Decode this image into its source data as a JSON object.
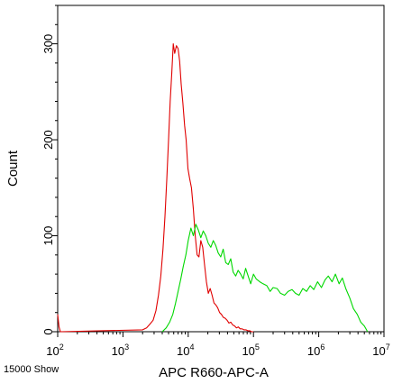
{
  "chart_data": {
    "type": "line",
    "title": "",
    "xlabel": "APC R660-APC-A",
    "ylabel": "Count",
    "x_scale": "log",
    "xlim": [
      100,
      10000000
    ],
    "ylim": [
      0,
      340
    ],
    "grid": false,
    "legend": "none",
    "footer_text": "15000 Show",
    "x_ticks": [
      {
        "base": "10",
        "exp": "2"
      },
      {
        "base": "10",
        "exp": "3"
      },
      {
        "base": "10",
        "exp": "4"
      },
      {
        "base": "10",
        "exp": "5"
      },
      {
        "base": "10",
        "exp": "6"
      },
      {
        "base": "10",
        "exp": "7"
      }
    ],
    "x_tick_values": [
      100,
      1000,
      10000,
      100000,
      1000000,
      10000000
    ],
    "y_ticks": [
      "0",
      "100",
      "200",
      "300"
    ],
    "y_tick_values": [
      0,
      100,
      200,
      300
    ],
    "series": [
      {
        "color": "#e00000",
        "x": [
          100,
          105,
          110,
          2000,
          2300,
          2600,
          2900,
          3200,
          3500,
          3800,
          4100,
          4400,
          4700,
          5000,
          5300,
          5600,
          5900,
          6200,
          6600,
          7000,
          7400,
          7800,
          8300,
          8800,
          9300,
          9900,
          10500,
          11200,
          12000,
          12800,
          13700,
          14600,
          15600,
          16700,
          17800,
          19000,
          20300,
          21700,
          23200,
          24800,
          26500,
          28300,
          30200,
          32300,
          34500,
          36900,
          39400,
          42100,
          45000,
          48100,
          51400,
          54900,
          58700,
          62700,
          67000,
          71600,
          76500,
          81800,
          87400,
          93400,
          100000
        ],
        "y": [
          18,
          5,
          0,
          2,
          4,
          8,
          12,
          22,
          38,
          58,
          86,
          120,
          160,
          200,
          240,
          270,
          300,
          290,
          298,
          295,
          282,
          258,
          238,
          215,
          200,
          170,
          160,
          150,
          128,
          100,
          80,
          78,
          95,
          88,
          70,
          52,
          40,
          45,
          38,
          30,
          28,
          25,
          20,
          18,
          15,
          14,
          12,
          9,
          10,
          7,
          6,
          4,
          5,
          3,
          3,
          2,
          2,
          1,
          1,
          0,
          0
        ]
      },
      {
        "color": "#00d800",
        "x": [
          4000,
          4600,
          5200,
          5800,
          6400,
          7000,
          7700,
          8400,
          9200,
          10000,
          11000,
          12000,
          13100,
          14300,
          15600,
          17000,
          18600,
          20300,
          22200,
          24200,
          26400,
          28800,
          31500,
          34400,
          37500,
          41000,
          44800,
          48900,
          53400,
          58300,
          63700,
          69500,
          75900,
          82900,
          90500,
          100000,
          110000,
          125000,
          140000,
          160000,
          180000,
          200000,
          230000,
          260000,
          300000,
          340000,
          390000,
          440000,
          500000,
          570000,
          650000,
          740000,
          840000,
          960000,
          1100000,
          1250000,
          1400000,
          1600000,
          1800000,
          2050000,
          2300000,
          2600000,
          3000000,
          3400000,
          3900000,
          4400000,
          5000000,
          5600000
        ],
        "y": [
          0,
          4,
          10,
          18,
          30,
          42,
          55,
          68,
          80,
          95,
          108,
          100,
          112,
          106,
          98,
          105,
          100,
          92,
          88,
          95,
          90,
          82,
          78,
          86,
          72,
          70,
          76,
          62,
          58,
          64,
          60,
          55,
          66,
          58,
          50,
          60,
          55,
          52,
          50,
          48,
          42,
          46,
          45,
          40,
          38,
          42,
          44,
          40,
          38,
          45,
          42,
          48,
          44,
          52,
          46,
          54,
          58,
          52,
          60,
          50,
          56,
          45,
          35,
          24,
          18,
          10,
          6,
          0
        ]
      }
    ]
  }
}
